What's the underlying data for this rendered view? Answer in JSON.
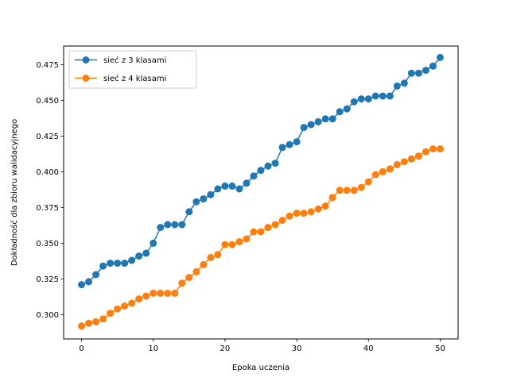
{
  "chart_data": {
    "type": "line",
    "title": "",
    "xlabel": "Epoka uczenia",
    "ylabel": "Dokładność dla zbioru walidacyjnego",
    "xlim": [
      -2.5,
      52.5
    ],
    "ylim": [
      0.283,
      0.488
    ],
    "xticks": [
      0,
      10,
      20,
      30,
      40,
      50
    ],
    "xtick_labels": [
      "0",
      "10",
      "20",
      "30",
      "40",
      "50"
    ],
    "yticks": [
      0.3,
      0.325,
      0.35,
      0.375,
      0.4,
      0.425,
      0.45,
      0.475
    ],
    "ytick_labels": [
      "0.300",
      "0.325",
      "0.350",
      "0.375",
      "0.400",
      "0.425",
      "0.450",
      "0.475"
    ],
    "grid": false,
    "legend_position": "top-left",
    "x": [
      0,
      1,
      2,
      3,
      4,
      5,
      6,
      7,
      8,
      9,
      10,
      11,
      12,
      13,
      14,
      15,
      16,
      17,
      18,
      19,
      20,
      21,
      22,
      23,
      24,
      25,
      26,
      27,
      28,
      29,
      30,
      31,
      32,
      33,
      34,
      35,
      36,
      37,
      38,
      39,
      40,
      41,
      42,
      43,
      44,
      45,
      46,
      47,
      48,
      49,
      50
    ],
    "series": [
      {
        "name": "sieć z 3 klasami",
        "color": "#1f77b4",
        "values": [
          0.321,
          0.323,
          0.328,
          0.334,
          0.336,
          0.336,
          0.336,
          0.338,
          0.341,
          0.343,
          0.35,
          0.361,
          0.363,
          0.363,
          0.363,
          0.372,
          0.379,
          0.381,
          0.384,
          0.388,
          0.39,
          0.39,
          0.388,
          0.392,
          0.397,
          0.401,
          0.404,
          0.406,
          0.417,
          0.419,
          0.421,
          0.431,
          0.433,
          0.435,
          0.437,
          0.437,
          0.442,
          0.444,
          0.449,
          0.451,
          0.451,
          0.453,
          0.453,
          0.453,
          0.46,
          0.462,
          0.469,
          0.469,
          0.471,
          0.474,
          0.48
        ]
      },
      {
        "name": "sieć z 4 klasami",
        "color": "#ff7f0e",
        "values": [
          0.292,
          0.294,
          0.295,
          0.297,
          0.301,
          0.304,
          0.306,
          0.308,
          0.311,
          0.313,
          0.315,
          0.315,
          0.315,
          0.315,
          0.322,
          0.326,
          0.33,
          0.335,
          0.34,
          0.342,
          0.349,
          0.349,
          0.351,
          0.353,
          0.358,
          0.358,
          0.361,
          0.363,
          0.366,
          0.369,
          0.371,
          0.371,
          0.372,
          0.374,
          0.376,
          0.382,
          0.387,
          0.387,
          0.387,
          0.389,
          0.393,
          0.398,
          0.4,
          0.402,
          0.405,
          0.407,
          0.409,
          0.411,
          0.414,
          0.416,
          0.416
        ]
      }
    ]
  }
}
